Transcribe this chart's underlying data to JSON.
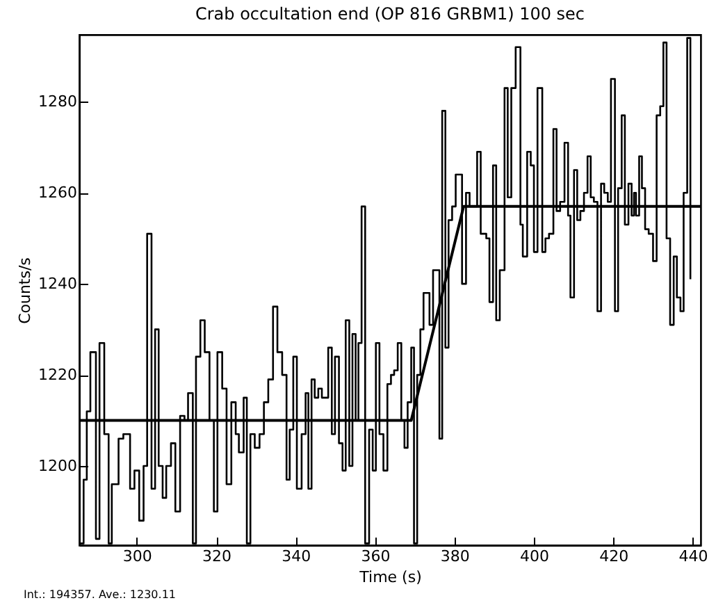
{
  "chart_data": {
    "type": "step",
    "title": "Crab occultation end (OP 816  GRBM1)  100 sec",
    "xlabel": "Time (s)",
    "ylabel": "Counts/s",
    "annotations": [
      "Int.: 194357.  Ave.: 1230.11"
    ],
    "xlim": [
      285.5,
      442
    ],
    "xticks": [
      300,
      320,
      340,
      360,
      380,
      400,
      420,
      440
    ],
    "ylim": [
      1182.6,
      1294.7
    ],
    "yticks": [
      1200,
      1220,
      1240,
      1260,
      1280
    ],
    "grid": false,
    "series": [
      {
        "type": "step",
        "color": "#000000",
        "x": [
          285.7,
          286.6,
          287.4,
          288.3,
          289.7,
          290.6,
          291.8,
          292.9,
          293.7,
          295.4,
          296.6,
          298.3,
          299.4,
          300.6,
          301.7,
          302.6,
          303.7,
          304.6,
          305.5,
          306.5,
          307.4,
          308.6,
          309.7,
          310.9,
          312.0,
          312.9,
          314.1,
          314.9,
          316.0,
          317.1,
          318.3,
          319.4,
          320.3,
          321.5,
          322.6,
          323.8,
          324.9,
          325.7,
          326.9,
          327.7,
          328.6,
          329.7,
          330.9,
          332.0,
          333.1,
          334.3,
          335.4,
          336.6,
          337.7,
          338.5,
          339.4,
          340.3,
          341.5,
          342.5,
          343.2,
          344.0,
          344.8,
          345.7,
          346.6,
          348.2,
          349.1,
          349.9,
          350.9,
          351.8,
          352.6,
          353.5,
          354.3,
          355.1,
          355.8,
          356.6,
          357.5,
          358.5,
          359.4,
          360.2,
          361.1,
          362.1,
          363.1,
          364.0,
          364.8,
          365.7,
          366.6,
          367.4,
          368.2,
          369.1,
          369.8,
          370.6,
          371.4,
          372.2,
          373.7,
          374.6,
          376.2,
          376.9,
          377.7,
          378.5,
          379.4,
          380.3,
          381.9,
          382.9,
          383.8,
          385.7,
          386.6,
          388.0,
          388.8,
          389.7,
          390.5,
          391.4,
          392.6,
          393.4,
          394.3,
          395.4,
          396.6,
          397.2,
          398.3,
          399.2,
          400.0,
          400.9,
          402.1,
          402.9,
          403.8,
          404.9,
          405.7,
          406.6,
          407.7,
          408.6,
          409.2,
          410.1,
          410.9,
          411.7,
          412.6,
          413.5,
          414.3,
          415.1,
          416.0,
          416.9,
          417.7,
          418.6,
          419.4,
          420.4,
          421.2,
          422.1,
          422.9,
          423.8,
          424.6,
          425.2,
          425.7,
          426.5,
          427.2,
          428.0,
          428.9,
          430.0,
          430.9,
          431.8,
          432.6,
          433.4,
          434.3,
          435.2,
          436.0,
          436.9,
          437.7,
          438.6,
          439.4
        ],
        "values": [
          1183,
          1197,
          1212,
          1225,
          1184,
          1227,
          1207,
          1183,
          1196,
          1206,
          1207,
          1195,
          1199,
          1188,
          1200,
          1251,
          1195,
          1230,
          1200,
          1193,
          1200,
          1205,
          1190,
          1211,
          1210,
          1216,
          1183,
          1224,
          1232,
          1225,
          1210,
          1190,
          1225,
          1217,
          1196,
          1214,
          1207,
          1203,
          1215,
          1183,
          1207,
          1204,
          1207,
          1214,
          1219,
          1235,
          1225,
          1220,
          1197,
          1208,
          1224,
          1195,
          1207,
          1216,
          1195,
          1219,
          1215,
          1217,
          1215,
          1226,
          1207,
          1224,
          1205,
          1199,
          1232,
          1200,
          1229,
          1210,
          1227,
          1257,
          1183,
          1208,
          1199,
          1227,
          1207,
          1199,
          1218,
          1220,
          1221,
          1227,
          1210,
          1204,
          1214,
          1226,
          1183,
          1220,
          1230,
          1238,
          1231,
          1243,
          1206,
          1278,
          1226,
          1254,
          1257,
          1264,
          1240,
          1260,
          1257,
          1269,
          1251,
          1250,
          1236,
          1266,
          1232,
          1243,
          1283,
          1259,
          1283,
          1292,
          1253,
          1246,
          1269,
          1266,
          1247,
          1283,
          1247,
          1250,
          1251,
          1274,
          1256,
          1258,
          1271,
          1255,
          1237,
          1265,
          1254,
          1256,
          1260,
          1268,
          1259,
          1258,
          1234,
          1262,
          1260,
          1258,
          1285,
          1234,
          1261,
          1277,
          1253,
          1262,
          1255,
          1260,
          1255,
          1268,
          1261,
          1252,
          1251,
          1245,
          1277,
          1279,
          1293,
          1250,
          1231,
          1246,
          1237,
          1234,
          1260,
          1294,
          1241
        ]
      },
      {
        "type": "line",
        "color": "#000000",
        "x": [
          285.5,
          369.1,
          382.3,
          442
        ],
        "values": [
          1210,
          1210,
          1257,
          1257
        ]
      }
    ]
  }
}
